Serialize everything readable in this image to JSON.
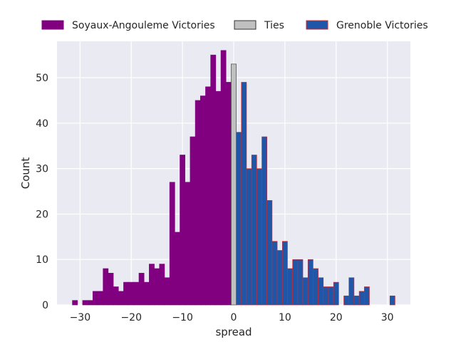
{
  "chart_data": {
    "type": "bar",
    "xlabel": "spread",
    "ylabel": "Count",
    "xlim": [
      -34.5,
      34.5
    ],
    "ylim": [
      0,
      58
    ],
    "xticks": [
      -30,
      -20,
      -10,
      0,
      10,
      20,
      30
    ],
    "yticks": [
      0,
      10,
      20,
      30,
      40,
      50
    ],
    "grid": true,
    "legend_position": "top",
    "bin_width": 1,
    "series": [
      {
        "name": "Soyaux-Angouleme Victories",
        "color": "#800080",
        "edge_color": "#800080",
        "x": [
          -32,
          -31,
          -30,
          -29,
          -28,
          -27,
          -26,
          -25,
          -24,
          -23,
          -22,
          -21,
          -20,
          -19,
          -18,
          -17,
          -16,
          -15,
          -14,
          -13,
          -12,
          -11,
          -10,
          -9,
          -8,
          -7,
          -6,
          -5,
          -4,
          -3,
          -2,
          -1
        ],
        "values": [
          0,
          1,
          0,
          1,
          1,
          3,
          3,
          8,
          7,
          4,
          3,
          5,
          5,
          5,
          7,
          5,
          9,
          8,
          9,
          6,
          27,
          16,
          33,
          27,
          37,
          45,
          46,
          48,
          55,
          47,
          56,
          49
        ]
      },
      {
        "name": "Ties",
        "color": "#c0c0c0",
        "edge_color": "#333333",
        "x": [
          0
        ],
        "values": [
          53
        ]
      },
      {
        "name": "Grenoble Victories",
        "color": "#1f56a8",
        "edge_color": "#d62728",
        "x": [
          1,
          2,
          3,
          4,
          5,
          6,
          7,
          8,
          9,
          10,
          11,
          12,
          13,
          14,
          15,
          16,
          17,
          18,
          19,
          20,
          21,
          22,
          23,
          24,
          25,
          26,
          27,
          28,
          29,
          30,
          31
        ],
        "values": [
          38,
          49,
          30,
          33,
          30,
          37,
          23,
          14,
          12,
          14,
          8,
          10,
          10,
          6,
          10,
          8,
          6,
          4,
          4,
          5,
          0,
          2,
          6,
          2,
          3,
          4,
          0,
          0,
          0,
          0,
          2
        ]
      }
    ]
  }
}
